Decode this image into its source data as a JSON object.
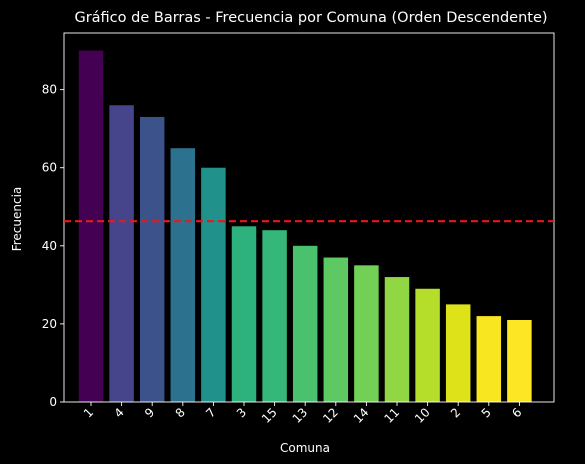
{
  "chart_data": {
    "type": "bar",
    "title": "Gráfico de Barras - Frecuencia por Comuna (Orden Descendente)",
    "xlabel": "Comuna",
    "ylabel": "Frecuencia",
    "categories": [
      "1",
      "4",
      "9",
      "8",
      "7",
      "3",
      "15",
      "13",
      "12",
      "14",
      "11",
      "10",
      "2",
      "5",
      "6"
    ],
    "values": [
      90,
      76,
      73,
      65,
      60,
      45,
      44,
      40,
      37,
      35,
      32,
      29,
      25,
      22,
      21
    ],
    "colors": [
      "#440154",
      "#46448b",
      "#3b528b",
      "#2c728e",
      "#21918c",
      "#2db27d",
      "#35b779",
      "#4ac16d",
      "#5ec962",
      "#73d056",
      "#90d743",
      "#b5de2b",
      "#dde318",
      "#f8e621",
      "#fde725"
    ],
    "yticks": [
      0,
      20,
      40,
      60,
      80
    ],
    "ylim": [
      0,
      94.5
    ],
    "reference_line": {
      "value": 46.3,
      "color": "#e31a1c",
      "style": "dashed"
    },
    "grid": false,
    "background": "#000000",
    "text_color": "#ffffff"
  }
}
